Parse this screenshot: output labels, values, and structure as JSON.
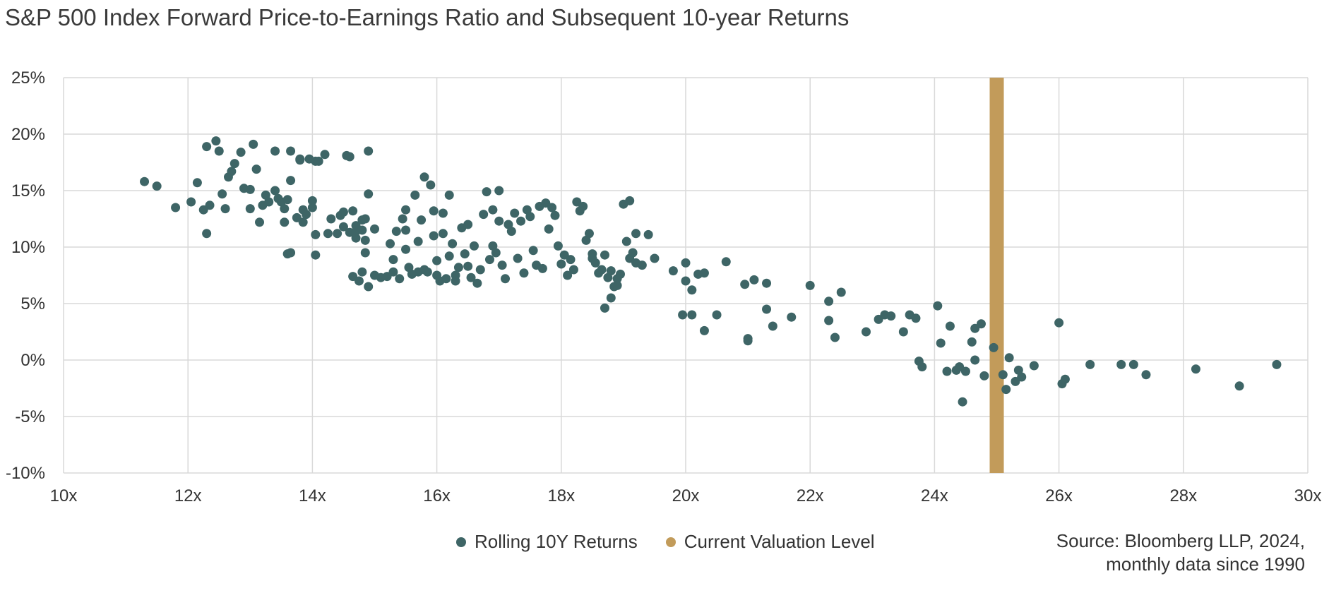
{
  "chart_data": {
    "type": "scatter",
    "title": "S&P 500 Index Forward Price-to-Earnings Ratio and Subsequent 10-year Returns",
    "xlabel": "",
    "ylabel": "",
    "xlim": [
      10,
      30
    ],
    "ylim": [
      -10,
      25
    ],
    "x_ticks": [
      10,
      12,
      14,
      16,
      18,
      20,
      22,
      24,
      26,
      28,
      30
    ],
    "x_tick_labels": [
      "10x",
      "12x",
      "14x",
      "16x",
      "18x",
      "20x",
      "22x",
      "24x",
      "26x",
      "28x",
      "30x"
    ],
    "y_ticks": [
      -10,
      -5,
      0,
      5,
      10,
      15,
      20,
      25
    ],
    "y_tick_labels": [
      "-10%",
      "-5%",
      "0%",
      "5%",
      "10%",
      "15%",
      "20%",
      "25%"
    ],
    "grid": true,
    "legend_position": "bottom",
    "series": [
      {
        "name": "Rolling 10Y Returns",
        "color": "#3e6566",
        "points": [
          [
            11.3,
            15.8
          ],
          [
            11.5,
            15.4
          ],
          [
            11.8,
            13.5
          ],
          [
            12.05,
            14.0
          ],
          [
            12.15,
            15.7
          ],
          [
            12.25,
            13.3
          ],
          [
            12.3,
            11.2
          ],
          [
            12.3,
            18.9
          ],
          [
            12.35,
            13.7
          ],
          [
            12.45,
            19.4
          ],
          [
            12.5,
            18.5
          ],
          [
            12.55,
            14.7
          ],
          [
            12.6,
            13.4
          ],
          [
            12.65,
            16.2
          ],
          [
            12.7,
            16.7
          ],
          [
            12.75,
            17.4
          ],
          [
            12.85,
            18.4
          ],
          [
            12.9,
            15.2
          ],
          [
            13.0,
            15.1
          ],
          [
            13.0,
            13.4
          ],
          [
            13.05,
            19.1
          ],
          [
            13.1,
            16.9
          ],
          [
            13.15,
            12.2
          ],
          [
            13.2,
            13.7
          ],
          [
            13.25,
            14.6
          ],
          [
            13.3,
            14.0
          ],
          [
            13.4,
            18.5
          ],
          [
            13.4,
            15.0
          ],
          [
            13.45,
            14.3
          ],
          [
            13.5,
            14.0
          ],
          [
            13.55,
            13.4
          ],
          [
            13.55,
            12.2
          ],
          [
            13.6,
            14.2
          ],
          [
            13.6,
            9.4
          ],
          [
            13.65,
            9.5
          ],
          [
            13.65,
            15.9
          ],
          [
            13.65,
            18.5
          ],
          [
            13.75,
            12.6
          ],
          [
            13.8,
            17.7
          ],
          [
            13.8,
            17.8
          ],
          [
            13.85,
            12.2
          ],
          [
            13.85,
            13.3
          ],
          [
            13.9,
            12.9
          ],
          [
            13.95,
            17.8
          ],
          [
            14.0,
            13.5
          ],
          [
            14.0,
            14.1
          ],
          [
            14.05,
            17.6
          ],
          [
            14.05,
            9.3
          ],
          [
            14.05,
            11.1
          ],
          [
            14.1,
            17.6
          ],
          [
            14.2,
            18.2
          ],
          [
            14.25,
            11.2
          ],
          [
            14.3,
            12.5
          ],
          [
            14.4,
            11.2
          ],
          [
            14.45,
            12.8
          ],
          [
            14.5,
            11.8
          ],
          [
            14.5,
            13.1
          ],
          [
            14.55,
            18.1
          ],
          [
            14.6,
            18.0
          ],
          [
            14.6,
            11.3
          ],
          [
            14.65,
            7.4
          ],
          [
            14.65,
            13.2
          ],
          [
            14.7,
            11.9
          ],
          [
            14.7,
            11.4
          ],
          [
            14.7,
            10.8
          ],
          [
            14.75,
            7.0
          ],
          [
            14.8,
            12.4
          ],
          [
            14.8,
            11.5
          ],
          [
            14.8,
            7.8
          ],
          [
            14.85,
            10.6
          ],
          [
            14.85,
            12.5
          ],
          [
            14.85,
            9.5
          ],
          [
            14.9,
            18.5
          ],
          [
            14.9,
            14.7
          ],
          [
            14.9,
            6.5
          ],
          [
            15.0,
            11.6
          ],
          [
            15.0,
            7.5
          ],
          [
            15.1,
            7.3
          ],
          [
            15.2,
            7.4
          ],
          [
            15.25,
            10.3
          ],
          [
            15.3,
            7.8
          ],
          [
            15.3,
            8.9
          ],
          [
            15.35,
            11.4
          ],
          [
            15.4,
            7.2
          ],
          [
            15.45,
            12.5
          ],
          [
            15.5,
            13.3
          ],
          [
            15.5,
            11.5
          ],
          [
            15.5,
            9.8
          ],
          [
            15.55,
            8.2
          ],
          [
            15.6,
            7.6
          ],
          [
            15.65,
            14.6
          ],
          [
            15.7,
            10.5
          ],
          [
            15.7,
            7.8
          ],
          [
            15.75,
            12.4
          ],
          [
            15.8,
            16.2
          ],
          [
            15.8,
            8.0
          ],
          [
            15.85,
            7.8
          ],
          [
            15.9,
            15.5
          ],
          [
            15.95,
            13.2
          ],
          [
            15.95,
            11.0
          ],
          [
            16.0,
            8.8
          ],
          [
            16.0,
            7.5
          ],
          [
            16.05,
            7.0
          ],
          [
            16.1,
            13.0
          ],
          [
            16.1,
            11.2
          ],
          [
            16.15,
            7.2
          ],
          [
            16.2,
            9.2
          ],
          [
            16.2,
            14.6
          ],
          [
            16.25,
            10.3
          ],
          [
            16.3,
            7.5
          ],
          [
            16.3,
            7.0
          ],
          [
            16.35,
            8.2
          ],
          [
            16.4,
            11.7
          ],
          [
            16.45,
            9.4
          ],
          [
            16.5,
            12.0
          ],
          [
            16.5,
            8.3
          ],
          [
            16.55,
            7.3
          ],
          [
            16.6,
            10.1
          ],
          [
            16.65,
            6.8
          ],
          [
            16.7,
            8.0
          ],
          [
            16.75,
            12.9
          ],
          [
            16.8,
            14.9
          ],
          [
            16.85,
            8.9
          ],
          [
            16.9,
            13.3
          ],
          [
            16.9,
            10.1
          ],
          [
            16.95,
            9.5
          ],
          [
            17.0,
            15.0
          ],
          [
            17.0,
            12.3
          ],
          [
            17.05,
            8.4
          ],
          [
            17.1,
            7.2
          ],
          [
            17.15,
            12.0
          ],
          [
            17.2,
            11.4
          ],
          [
            17.25,
            13.0
          ],
          [
            17.3,
            9.0
          ],
          [
            17.35,
            12.3
          ],
          [
            17.4,
            7.7
          ],
          [
            17.45,
            13.3
          ],
          [
            17.5,
            12.7
          ],
          [
            17.55,
            9.7
          ],
          [
            17.6,
            8.4
          ],
          [
            17.65,
            13.6
          ],
          [
            17.7,
            8.1
          ],
          [
            17.75,
            13.9
          ],
          [
            17.8,
            11.6
          ],
          [
            17.85,
            13.5
          ],
          [
            17.9,
            12.8
          ],
          [
            17.95,
            10.1
          ],
          [
            18.0,
            8.5
          ],
          [
            18.05,
            9.3
          ],
          [
            18.1,
            7.5
          ],
          [
            18.15,
            8.9
          ],
          [
            18.2,
            8.0
          ],
          [
            18.25,
            14.0
          ],
          [
            18.3,
            13.2
          ],
          [
            18.35,
            13.6
          ],
          [
            18.4,
            10.6
          ],
          [
            18.45,
            11.2
          ],
          [
            18.5,
            9.4
          ],
          [
            18.55,
            8.6
          ],
          [
            18.6,
            7.7
          ],
          [
            18.65,
            8.0
          ],
          [
            18.7,
            9.3
          ],
          [
            18.75,
            7.3
          ],
          [
            18.8,
            5.5
          ],
          [
            18.85,
            6.5
          ],
          [
            18.9,
            6.6
          ],
          [
            18.95,
            7.6
          ],
          [
            19.0,
            13.8
          ],
          [
            19.05,
            10.5
          ],
          [
            19.1,
            9.0
          ],
          [
            19.15,
            9.5
          ],
          [
            19.2,
            8.6
          ],
          [
            18.5,
            9.0
          ],
          [
            18.7,
            4.6
          ],
          [
            18.8,
            7.9
          ],
          [
            18.9,
            7.2
          ],
          [
            19.1,
            14.1
          ],
          [
            19.2,
            11.2
          ],
          [
            19.3,
            8.4
          ],
          [
            19.4,
            11.1
          ],
          [
            19.5,
            9.0
          ],
          [
            19.8,
            7.9
          ],
          [
            20.0,
            8.6
          ],
          [
            20.0,
            7.0
          ],
          [
            19.95,
            4.0
          ],
          [
            20.1,
            6.2
          ],
          [
            20.1,
            4.0
          ],
          [
            20.2,
            7.6
          ],
          [
            20.3,
            7.7
          ],
          [
            20.3,
            2.6
          ],
          [
            20.5,
            4.0
          ],
          [
            20.65,
            8.7
          ],
          [
            20.95,
            6.7
          ],
          [
            21.0,
            1.9
          ],
          [
            21.0,
            1.7
          ],
          [
            21.1,
            7.1
          ],
          [
            21.3,
            6.8
          ],
          [
            21.3,
            4.5
          ],
          [
            21.4,
            3.0
          ],
          [
            21.7,
            3.8
          ],
          [
            22.0,
            6.6
          ],
          [
            22.3,
            3.5
          ],
          [
            22.3,
            5.2
          ],
          [
            22.4,
            2.0
          ],
          [
            22.5,
            6.0
          ],
          [
            22.9,
            2.5
          ],
          [
            23.1,
            3.6
          ],
          [
            23.2,
            4.0
          ],
          [
            23.3,
            3.9
          ],
          [
            23.5,
            2.5
          ],
          [
            23.6,
            4.0
          ],
          [
            23.7,
            3.7
          ],
          [
            23.75,
            -0.1
          ],
          [
            23.8,
            -0.6
          ],
          [
            24.05,
            4.8
          ],
          [
            24.1,
            1.5
          ],
          [
            24.2,
            -1.0
          ],
          [
            24.25,
            3.0
          ],
          [
            24.35,
            -0.9
          ],
          [
            24.4,
            -0.6
          ],
          [
            24.45,
            -3.7
          ],
          [
            24.5,
            -1.0
          ],
          [
            24.6,
            1.6
          ],
          [
            24.65,
            2.8
          ],
          [
            24.65,
            0.0
          ],
          [
            24.75,
            3.2
          ],
          [
            24.8,
            -1.4
          ],
          [
            25.1,
            -1.3
          ],
          [
            25.15,
            -2.6
          ],
          [
            25.2,
            0.2
          ],
          [
            25.3,
            -1.9
          ],
          [
            25.35,
            -0.9
          ],
          [
            25.4,
            -1.5
          ],
          [
            25.6,
            -0.5
          ],
          [
            26.0,
            3.3
          ],
          [
            26.05,
            -2.1
          ],
          [
            26.1,
            -1.7
          ],
          [
            26.5,
            -0.4
          ],
          [
            27.0,
            -0.4
          ],
          [
            27.2,
            -0.4
          ],
          [
            27.4,
            -1.3
          ],
          [
            28.2,
            -0.8
          ],
          [
            28.9,
            -2.3
          ],
          [
            29.5,
            -0.4
          ],
          [
            24.95,
            1.1
          ]
        ]
      },
      {
        "name": "Current Valuation Level",
        "color": "#c29b5a",
        "x": 25
      }
    ],
    "source": [
      "Source: Bloomberg LLP, 2024,",
      "monthly data since 1990"
    ]
  }
}
